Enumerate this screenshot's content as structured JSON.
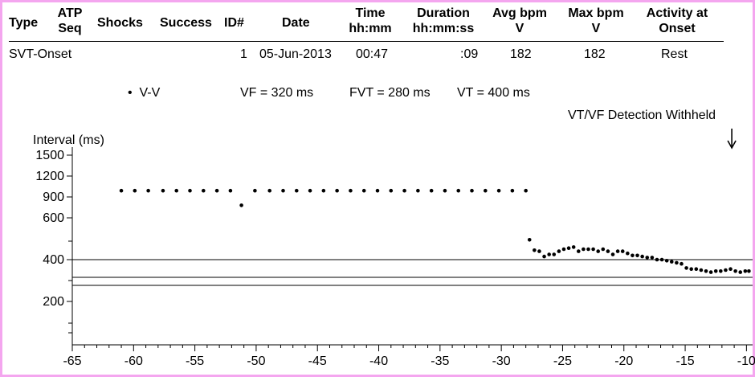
{
  "table": {
    "headers": [
      {
        "key": "type",
        "line1": "Type",
        "line2": ""
      },
      {
        "key": "atp",
        "line1": "ATP",
        "line2": "Seq"
      },
      {
        "key": "shocks",
        "line1": "Shocks",
        "line2": ""
      },
      {
        "key": "success",
        "line1": "Success",
        "line2": ""
      },
      {
        "key": "id",
        "line1": "ID#",
        "line2": ""
      },
      {
        "key": "date",
        "line1": "Date",
        "line2": ""
      },
      {
        "key": "time",
        "line1": "Time",
        "line2": "hh:mm"
      },
      {
        "key": "duration",
        "line1": "Duration",
        "line2": "hh:mm:ss"
      },
      {
        "key": "avg",
        "line1": "Avg bpm",
        "line2": "V"
      },
      {
        "key": "max",
        "line1": "Max bpm",
        "line2": "V"
      },
      {
        "key": "activity",
        "line1": "Activity at",
        "line2": "Onset"
      }
    ],
    "row": {
      "type": "SVT-Onset",
      "id": "1",
      "date": "05-Jun-2013",
      "time": "00:47",
      "duration": ":09",
      "avg": "182",
      "max": "182",
      "activity": "Rest"
    }
  },
  "legend": {
    "series": "V-V",
    "vf": "VF = 320 ms",
    "fvt": "FVT = 280 ms",
    "vt": "VT = 400 ms"
  },
  "annotation": "VT/VF Detection Withheld",
  "chart_data": {
    "type": "scatter",
    "ylabel": "Interval (ms)",
    "xlabel": "",
    "xlim": [
      -65,
      -9.5
    ],
    "ylim": [
      0,
      1500
    ],
    "yscale": "reciprocal",
    "yticks": [
      1500,
      1200,
      900,
      600,
      400,
      200
    ],
    "xticks": [
      -65,
      -60,
      -55,
      -50,
      -45,
      -40,
      -35,
      -30,
      -25,
      -20,
      -15,
      -10
    ],
    "hlines": [
      {
        "label": "VT",
        "value": 400
      },
      {
        "label": "VF",
        "value": 320
      },
      {
        "label": "FVT",
        "value": 280
      }
    ],
    "annotation_x": -11,
    "series": [
      {
        "name": "V-V",
        "points": [
          [
            -61,
            990
          ],
          [
            -59.9,
            990
          ],
          [
            -58.8,
            990
          ],
          [
            -57.6,
            990
          ],
          [
            -56.5,
            990
          ],
          [
            -55.4,
            990
          ],
          [
            -54.3,
            990
          ],
          [
            -53.2,
            990
          ],
          [
            -52.1,
            990
          ],
          [
            -51.2,
            780
          ],
          [
            -50.1,
            990
          ],
          [
            -48.9,
            990
          ],
          [
            -47.8,
            990
          ],
          [
            -46.7,
            990
          ],
          [
            -45.6,
            990
          ],
          [
            -44.5,
            990
          ],
          [
            -43.4,
            990
          ],
          [
            -42.3,
            990
          ],
          [
            -41.2,
            990
          ],
          [
            -40.1,
            990
          ],
          [
            -39,
            990
          ],
          [
            -37.9,
            990
          ],
          [
            -36.8,
            990
          ],
          [
            -35.7,
            990
          ],
          [
            -34.6,
            990
          ],
          [
            -33.5,
            990
          ],
          [
            -32.4,
            990
          ],
          [
            -31.3,
            990
          ],
          [
            -30.2,
            990
          ],
          [
            -29.1,
            990
          ],
          [
            -28,
            990
          ],
          [
            -27.7,
            495
          ],
          [
            -27.3,
            445
          ],
          [
            -26.9,
            440
          ],
          [
            -26.5,
            415
          ],
          [
            -26.1,
            425
          ],
          [
            -25.7,
            425
          ],
          [
            -25.3,
            440
          ],
          [
            -24.9,
            450
          ],
          [
            -24.5,
            455
          ],
          [
            -24.1,
            460
          ],
          [
            -23.7,
            440
          ],
          [
            -23.3,
            450
          ],
          [
            -22.9,
            450
          ],
          [
            -22.5,
            450
          ],
          [
            -22.1,
            440
          ],
          [
            -21.7,
            450
          ],
          [
            -21.3,
            440
          ],
          [
            -20.9,
            425
          ],
          [
            -20.5,
            440
          ],
          [
            -20.1,
            440
          ],
          [
            -19.7,
            430
          ],
          [
            -19.3,
            420
          ],
          [
            -18.9,
            420
          ],
          [
            -18.5,
            415
          ],
          [
            -18.1,
            410
          ],
          [
            -17.7,
            410
          ],
          [
            -17.3,
            400
          ],
          [
            -16.9,
            400
          ],
          [
            -16.5,
            395
          ],
          [
            -16.1,
            390
          ],
          [
            -15.7,
            385
          ],
          [
            -15.3,
            380
          ],
          [
            -14.9,
            360
          ],
          [
            -14.5,
            355
          ],
          [
            -14.1,
            355
          ],
          [
            -13.7,
            350
          ],
          [
            -13.3,
            345
          ],
          [
            -12.9,
            340
          ],
          [
            -12.5,
            345
          ],
          [
            -12.1,
            345
          ],
          [
            -11.7,
            350
          ],
          [
            -11.3,
            355
          ],
          [
            -10.9,
            345
          ],
          [
            -10.5,
            340
          ],
          [
            -10.1,
            345
          ],
          [
            -9.8,
            345
          ]
        ]
      }
    ]
  }
}
